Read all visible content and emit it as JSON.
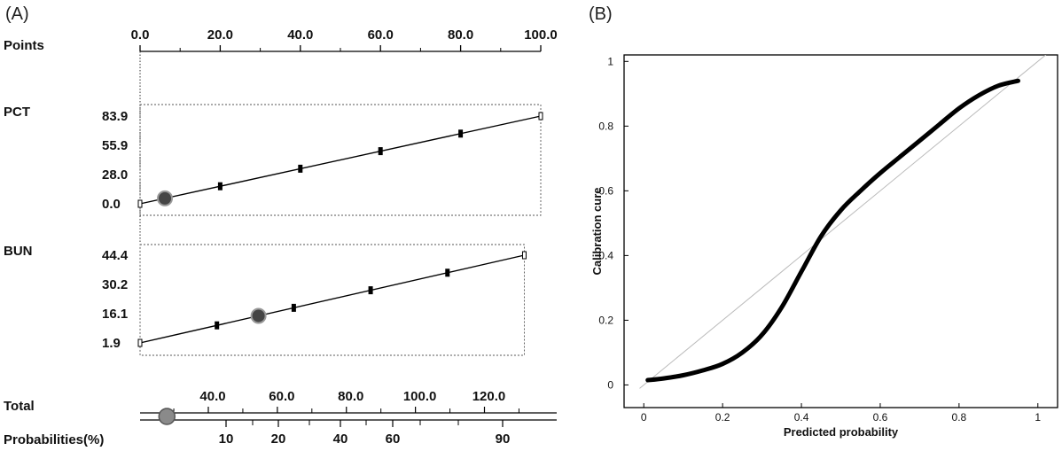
{
  "panels": {
    "a_label": "(A)",
    "b_label": "(B)"
  },
  "chart_data": [
    {
      "type": "nomogram",
      "points_axis": {
        "label": "Points",
        "range": [
          0,
          100
        ],
        "ticks": [
          0,
          20,
          40,
          60,
          80,
          100
        ],
        "tick_labels": [
          "0.0",
          "20.0",
          "40.0",
          "60.0",
          "80.0",
          "100.0"
        ]
      },
      "variables": [
        {
          "name": "PCT",
          "range": [
            0,
            83.9
          ],
          "points_range": [
            0,
            100
          ],
          "labeled_ticks": [
            0,
            28.0,
            55.9,
            83.9
          ],
          "tick_labels": [
            "0.0",
            "28.0",
            "55.9",
            "83.9"
          ],
          "marker_value": 5.2
        },
        {
          "name": "BUN",
          "range": [
            1.9,
            44.4
          ],
          "points_range": [
            0,
            95.9
          ],
          "labeled_ticks": [
            1.9,
            16.1,
            30.2,
            44.4
          ],
          "tick_labels": [
            "1.9",
            "16.1",
            "30.2",
            "44.4"
          ],
          "marker_value": 15.0
        }
      ],
      "total_axis": {
        "label": "Total",
        "ticks": [
          40,
          60,
          80,
          100,
          120
        ],
        "tick_labels": [
          "40.0",
          "60.0",
          "80.0",
          "100.0",
          "120.0"
        ],
        "marker_value": 28
      },
      "probability_axis": {
        "label": "Probabilities(%)",
        "ticks": [
          10,
          20,
          40,
          60,
          90
        ],
        "tick_labels": [
          "10",
          "20",
          "40",
          "60",
          "90"
        ]
      }
    },
    {
      "type": "line",
      "xlabel": "Predicted probability",
      "ylabel": "Calibration cure",
      "xlim": [
        -0.05,
        1.05
      ],
      "ylim": [
        -0.07,
        1.02
      ],
      "xticks": [
        0,
        0.2,
        0.4,
        0.6,
        0.8,
        1
      ],
      "xtick_labels": [
        "0",
        "0.2",
        "0.4",
        "0.6",
        "0.8",
        "1"
      ],
      "yticks": [
        0,
        0.2,
        0.4,
        0.6,
        0.8,
        1
      ],
      "ytick_labels": [
        "0",
        "0.2",
        "0.4",
        "0.6",
        "0.8",
        "1"
      ],
      "series": [
        {
          "role": "reference-diagonal",
          "color": "#bbbbbb",
          "x": [
            -0.01,
            1.05
          ],
          "y": [
            -0.01,
            1.05
          ]
        },
        {
          "role": "calibration-curve",
          "color": "#000000",
          "x": [
            0.01,
            0.05,
            0.1,
            0.15,
            0.2,
            0.25,
            0.3,
            0.35,
            0.4,
            0.45,
            0.5,
            0.55,
            0.6,
            0.65,
            0.7,
            0.75,
            0.8,
            0.85,
            0.9,
            0.95
          ],
          "y": [
            0.015,
            0.02,
            0.03,
            0.045,
            0.065,
            0.1,
            0.155,
            0.24,
            0.35,
            0.46,
            0.54,
            0.6,
            0.655,
            0.705,
            0.755,
            0.805,
            0.855,
            0.895,
            0.925,
            0.94
          ]
        }
      ]
    }
  ]
}
